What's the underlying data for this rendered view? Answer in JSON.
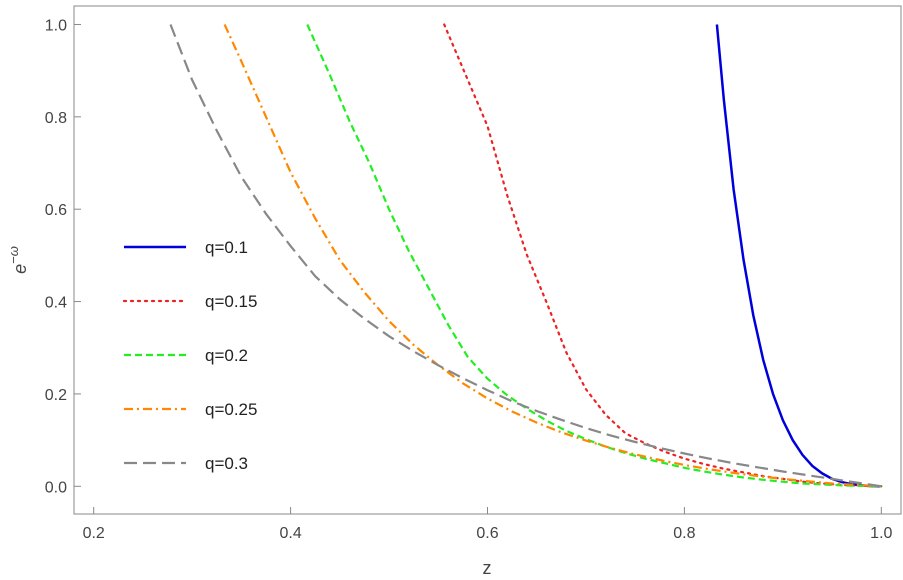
{
  "chart_data": {
    "type": "line",
    "title": "",
    "xlabel": "z",
    "ylabel_base": "e",
    "ylabel_sup": "−ω",
    "xlim": [
      0.18,
      1.02
    ],
    "ylim": [
      -0.06,
      1.04
    ],
    "xticks": [
      0.2,
      0.4,
      0.6,
      0.8,
      1.0
    ],
    "xtick_labels": [
      "0.2",
      "0.4",
      "0.6",
      "0.8",
      "1.0"
    ],
    "yticks": [
      0.0,
      0.2,
      0.4,
      0.6,
      0.8,
      1.0
    ],
    "ytick_labels": [
      "0.0",
      "0.2",
      "0.4",
      "0.6",
      "0.8",
      "1.0"
    ],
    "grid": false,
    "legend_position": "middle-left",
    "series": [
      {
        "name": "q=0.1",
        "color": "#0000dd",
        "dash": "solid",
        "x": [
          0.833,
          0.84,
          0.85,
          0.86,
          0.87,
          0.88,
          0.89,
          0.9,
          0.91,
          0.92,
          0.93,
          0.94,
          0.95,
          0.96,
          0.97,
          0.98,
          0.99,
          1.0
        ],
        "y": [
          1.0,
          0.838,
          0.643,
          0.491,
          0.37,
          0.274,
          0.2,
          0.143,
          0.1,
          0.068,
          0.044,
          0.028,
          0.016,
          0.009,
          0.004,
          0.002,
          0.0004,
          0.0
        ]
      },
      {
        "name": "q=0.15",
        "color": "#ee2222",
        "dash": "dotted",
        "x": [
          0.556,
          0.58,
          0.6,
          0.62,
          0.64,
          0.66,
          0.68,
          0.7,
          0.72,
          0.74,
          0.76,
          0.78,
          0.8,
          0.82,
          0.84,
          0.86,
          0.88,
          0.9,
          0.92,
          0.94,
          0.96,
          0.98,
          1.0
        ],
        "y": [
          1.0,
          0.88,
          0.78,
          0.63,
          0.501,
          0.398,
          0.29,
          0.21,
          0.155,
          0.115,
          0.093,
          0.075,
          0.06,
          0.048,
          0.038,
          0.03,
          0.022,
          0.016,
          0.01,
          0.006,
          0.003,
          0.001,
          0.0
        ]
      },
      {
        "name": "q=0.2",
        "color": "#22ee22",
        "dash": "dashed",
        "x": [
          0.417,
          0.44,
          0.46,
          0.48,
          0.5,
          0.52,
          0.54,
          0.56,
          0.58,
          0.6,
          0.62,
          0.64,
          0.66,
          0.68,
          0.7,
          0.72,
          0.74,
          0.76,
          0.78,
          0.8,
          0.82,
          0.84,
          0.86,
          0.88,
          0.9,
          0.92,
          0.94,
          0.96,
          0.98,
          1.0
        ],
        "y": [
          1.0,
          0.89,
          0.79,
          0.7,
          0.6,
          0.51,
          0.43,
          0.35,
          0.28,
          0.233,
          0.197,
          0.168,
          0.142,
          0.12,
          0.102,
          0.086,
          0.072,
          0.06,
          0.05,
          0.04,
          0.032,
          0.025,
          0.019,
          0.014,
          0.01,
          0.006,
          0.004,
          0.002,
          0.001,
          0.0
        ]
      },
      {
        "name": "q=0.25",
        "color": "#ff8800",
        "dash": "dashdot",
        "x": [
          0.333,
          0.35,
          0.375,
          0.4,
          0.425,
          0.45,
          0.475,
          0.5,
          0.525,
          0.55,
          0.575,
          0.6,
          0.625,
          0.65,
          0.675,
          0.7,
          0.725,
          0.75,
          0.775,
          0.8,
          0.825,
          0.85,
          0.875,
          0.9,
          0.925,
          0.95,
          0.975,
          1.0
        ],
        "y": [
          1.0,
          0.92,
          0.8,
          0.68,
          0.58,
          0.49,
          0.42,
          0.358,
          0.306,
          0.262,
          0.223,
          0.19,
          0.162,
          0.138,
          0.117,
          0.099,
          0.083,
          0.069,
          0.057,
          0.046,
          0.037,
          0.029,
          0.022,
          0.016,
          0.011,
          0.006,
          0.003,
          0.0
        ]
      },
      {
        "name": "q=0.3",
        "color": "#888888",
        "dash": "longdash",
        "x": [
          0.278,
          0.3,
          0.325,
          0.35,
          0.375,
          0.4,
          0.425,
          0.45,
          0.475,
          0.5,
          0.525,
          0.55,
          0.575,
          0.6,
          0.625,
          0.65,
          0.675,
          0.7,
          0.725,
          0.75,
          0.775,
          0.8,
          0.825,
          0.85,
          0.875,
          0.9,
          0.925,
          0.95,
          0.975,
          1.0
        ],
        "y": [
          1.0,
          0.88,
          0.77,
          0.67,
          0.59,
          0.52,
          0.455,
          0.405,
          0.363,
          0.325,
          0.292,
          0.262,
          0.234,
          0.208,
          0.184,
          0.163,
          0.144,
          0.126,
          0.11,
          0.096,
          0.083,
          0.071,
          0.06,
          0.05,
          0.041,
          0.032,
          0.024,
          0.016,
          0.008,
          0.0
        ]
      }
    ]
  }
}
